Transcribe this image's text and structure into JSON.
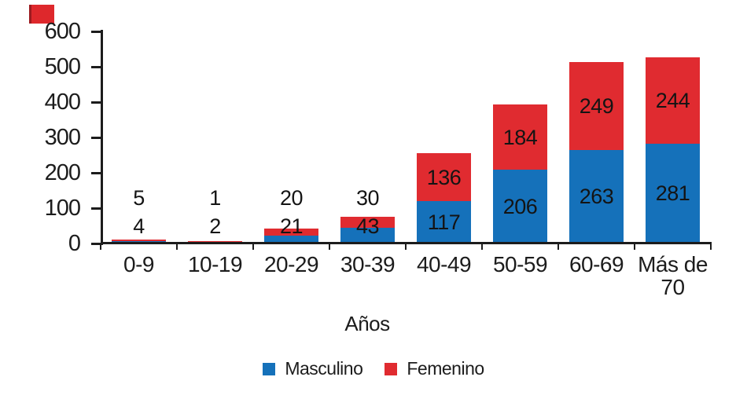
{
  "chart_data": {
    "type": "bar",
    "stacked": true,
    "categories": [
      "0-9",
      "10-19",
      "20-29",
      "30-39",
      "40-49",
      "50-59",
      "60-69",
      "Más de 70"
    ],
    "series": [
      {
        "name": "Masculino",
        "color": "#1571ba",
        "values": [
          4,
          2,
          21,
          43,
          117,
          206,
          263,
          281
        ]
      },
      {
        "name": "Femenino",
        "color": "#e02b30",
        "values": [
          5,
          1,
          20,
          30,
          136,
          184,
          249,
          244
        ]
      }
    ],
    "xlabel": "Años",
    "ylabel": "",
    "ylim": [
      0,
      600
    ],
    "yticks": [
      0,
      100,
      200,
      300,
      400,
      500,
      600
    ],
    "grid": false,
    "legend_position": "bottom",
    "value_labels": true
  },
  "colors": {
    "axis": "#1c1c1c",
    "text": "#1c1c1c",
    "value_label": "#141414",
    "artifact_red": "#de282c"
  }
}
